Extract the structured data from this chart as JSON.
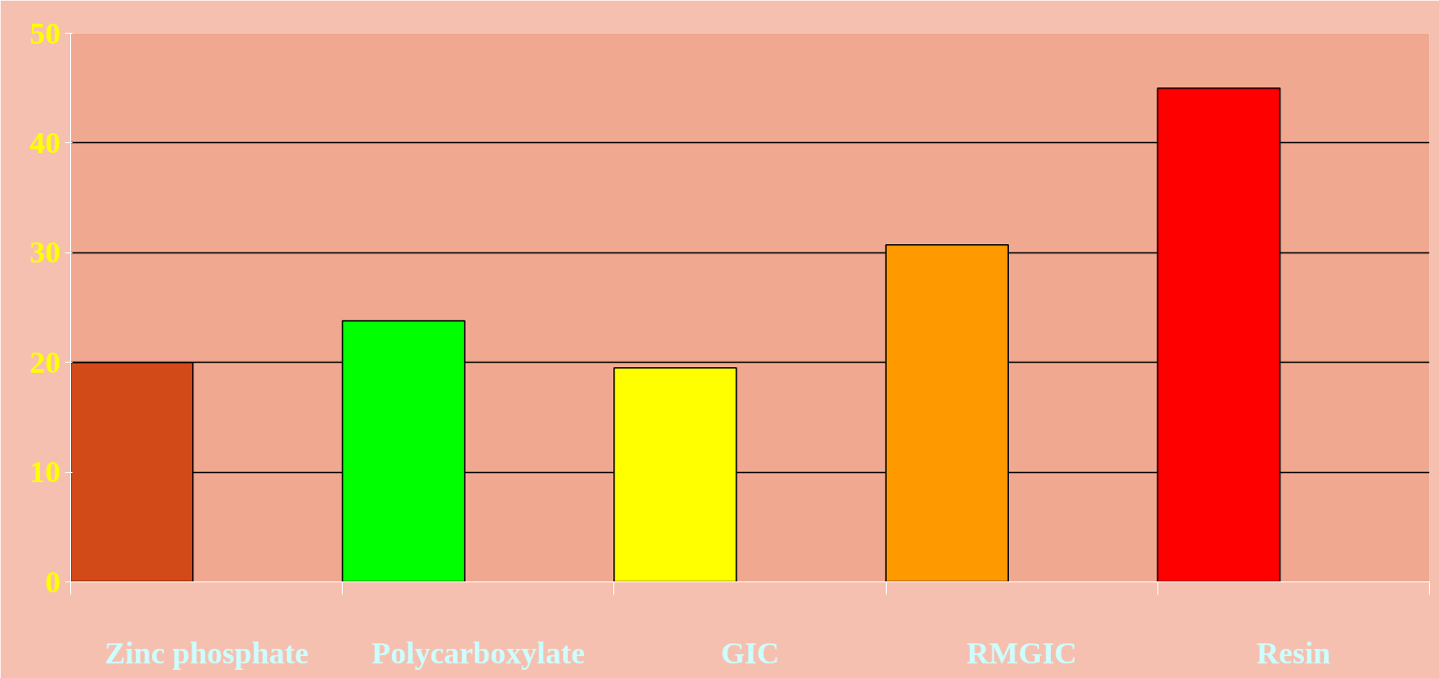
{
  "chart_data": {
    "type": "bar",
    "categories": [
      "Zinc phosphate",
      "Polycarboxylate",
      "GIC",
      "RMGIC",
      "Resin"
    ],
    "values": [
      20,
      23.8,
      19.5,
      30.7,
      45
    ],
    "colors": [
      "#d24a18",
      "#00ff00",
      "#ffff00",
      "#ff9900",
      "#ff0000"
    ],
    "ylim": [
      0,
      50
    ],
    "yticks": [
      0,
      10,
      20,
      30,
      40,
      50
    ],
    "grid": "y"
  }
}
